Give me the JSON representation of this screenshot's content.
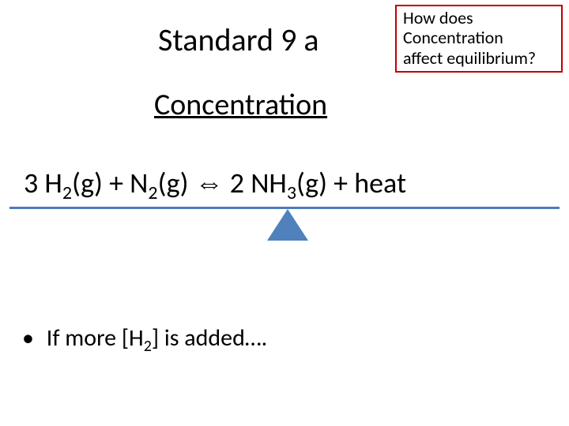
{
  "colors": {
    "callout_border": "#c00000",
    "balance_line": "#4a7ebb",
    "fulcrum_fill": "#4f81bd"
  },
  "title": "Standard 9 a",
  "callout": {
    "line1": "How does",
    "line2": "Concentration",
    "line3": "affect equilibrium?"
  },
  "subheading": "Concentration",
  "equation": {
    "t1": "3 H",
    "s1": "2",
    "t2": "(g) + N",
    "s2": "2",
    "t3": "(g) ",
    "arrow": "⇔",
    "t4": " 2 NH",
    "s3": "3",
    "t5": "(g) + heat"
  },
  "bullet": {
    "marker": "•",
    "t1": "If more [H",
    "s1": "2",
    "t2": "] is added…."
  }
}
